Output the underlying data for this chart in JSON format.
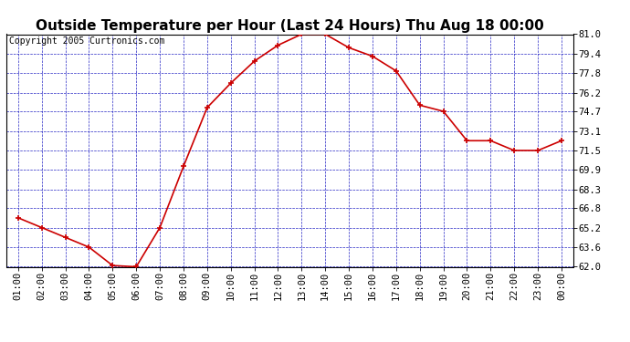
{
  "title": "Outside Temperature per Hour (Last 24 Hours) Thu Aug 18 00:00",
  "copyright": "Copyright 2005 Curtronics.com",
  "x_labels": [
    "01:00",
    "02:00",
    "03:00",
    "04:00",
    "05:00",
    "06:00",
    "07:00",
    "08:00",
    "09:00",
    "10:00",
    "11:00",
    "12:00",
    "13:00",
    "14:00",
    "15:00",
    "16:00",
    "17:00",
    "18:00",
    "19:00",
    "20:00",
    "21:00",
    "22:00",
    "23:00",
    "00:00"
  ],
  "y_values": [
    66.0,
    65.2,
    64.4,
    63.6,
    62.1,
    62.0,
    65.2,
    70.2,
    75.0,
    77.0,
    78.8,
    80.1,
    81.0,
    81.0,
    79.9,
    79.2,
    78.0,
    75.2,
    74.7,
    72.3,
    72.3,
    71.5,
    71.5,
    72.3
  ],
  "line_color": "#cc0000",
  "marker_color": "#cc0000",
  "bg_color": "#ffffff",
  "plot_bg_color": "#ffffff",
  "grid_color": "#0000bb",
  "border_color": "#000000",
  "title_fontsize": 11,
  "ylim_min": 62.0,
  "ylim_max": 81.0,
  "ytick_values": [
    62.0,
    63.6,
    65.2,
    66.8,
    68.3,
    69.9,
    71.5,
    73.1,
    74.7,
    76.2,
    77.8,
    79.4,
    81.0
  ],
  "tick_fontsize": 7.5,
  "copyright_fontsize": 7
}
